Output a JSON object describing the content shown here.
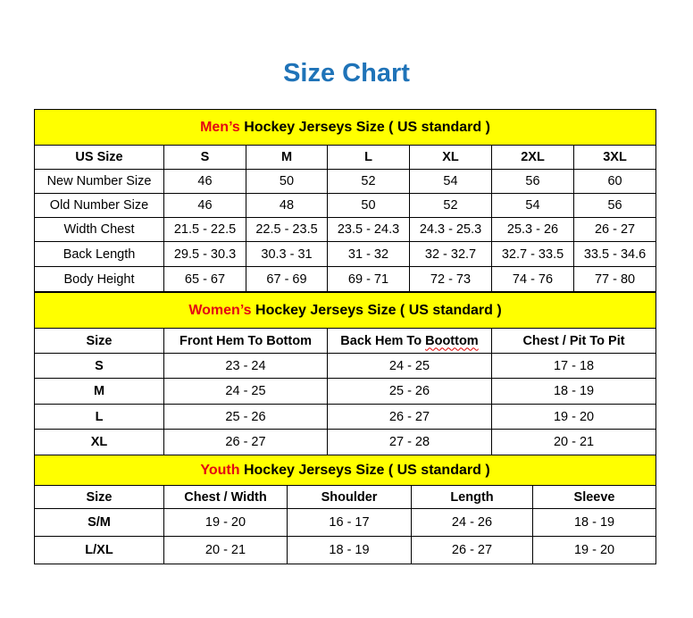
{
  "title": "Size Chart",
  "colors": {
    "title": "#1f73b8",
    "section_bg": "#ffff00",
    "highlight": "#e30613"
  },
  "men": {
    "heading_highlight": "Men’s",
    "heading_rest": " Hockey Jerseys Size ( US standard )",
    "columns": [
      "US Size",
      "S",
      "M",
      "L",
      "XL",
      "2XL",
      "3XL"
    ],
    "rows": [
      [
        "New Number Size",
        "46",
        "50",
        "52",
        "54",
        "56",
        "60"
      ],
      [
        "Old Number Size",
        "46",
        "48",
        "50",
        "52",
        "54",
        "56"
      ],
      [
        "Width Chest",
        "21.5 - 22.5",
        "22.5 - 23.5",
        "23.5 - 24.3",
        "24.3 - 25.3",
        "25.3 - 26",
        "26 - 27"
      ],
      [
        "Back Length",
        "29.5 - 30.3",
        "30.3 - 31",
        "31 - 32",
        "32 - 32.7",
        "32.7 - 33.5",
        "33.5 - 34.6"
      ],
      [
        "Body Height",
        "65 - 67",
        "67 - 69",
        "69 - 71",
        "72 - 73",
        "74 - 76",
        "77 - 80"
      ]
    ]
  },
  "women": {
    "heading_highlight": "Women’s",
    "heading_rest": " Hockey Jerseys Size ( US standard )",
    "columns": [
      "Size",
      "Front Hem To Bottom",
      "Back Hem To Boottom",
      "Chest / Pit To Pit"
    ],
    "rows": [
      [
        "S",
        "23 - 24",
        "24 - 25",
        "17 - 18"
      ],
      [
        "M",
        "24 - 25",
        "25 - 26",
        "18 - 19"
      ],
      [
        "L",
        "25 - 26",
        "26 - 27",
        "19 - 20"
      ],
      [
        "XL",
        "26 - 27",
        "27 - 28",
        "20 - 21"
      ]
    ]
  },
  "youth": {
    "heading_highlight": "Youth",
    "heading_rest": " Hockey Jerseys Size ( US standard )",
    "columns": [
      "Size",
      "Chest / Width",
      "Shoulder",
      "Length",
      "Sleeve"
    ],
    "rows": [
      [
        "S/M",
        "19 - 20",
        "16 - 17",
        "24 - 26",
        "18 - 19"
      ],
      [
        "L/XL",
        "20 - 21",
        "18 - 19",
        "26 - 27",
        "19 - 20"
      ]
    ]
  }
}
